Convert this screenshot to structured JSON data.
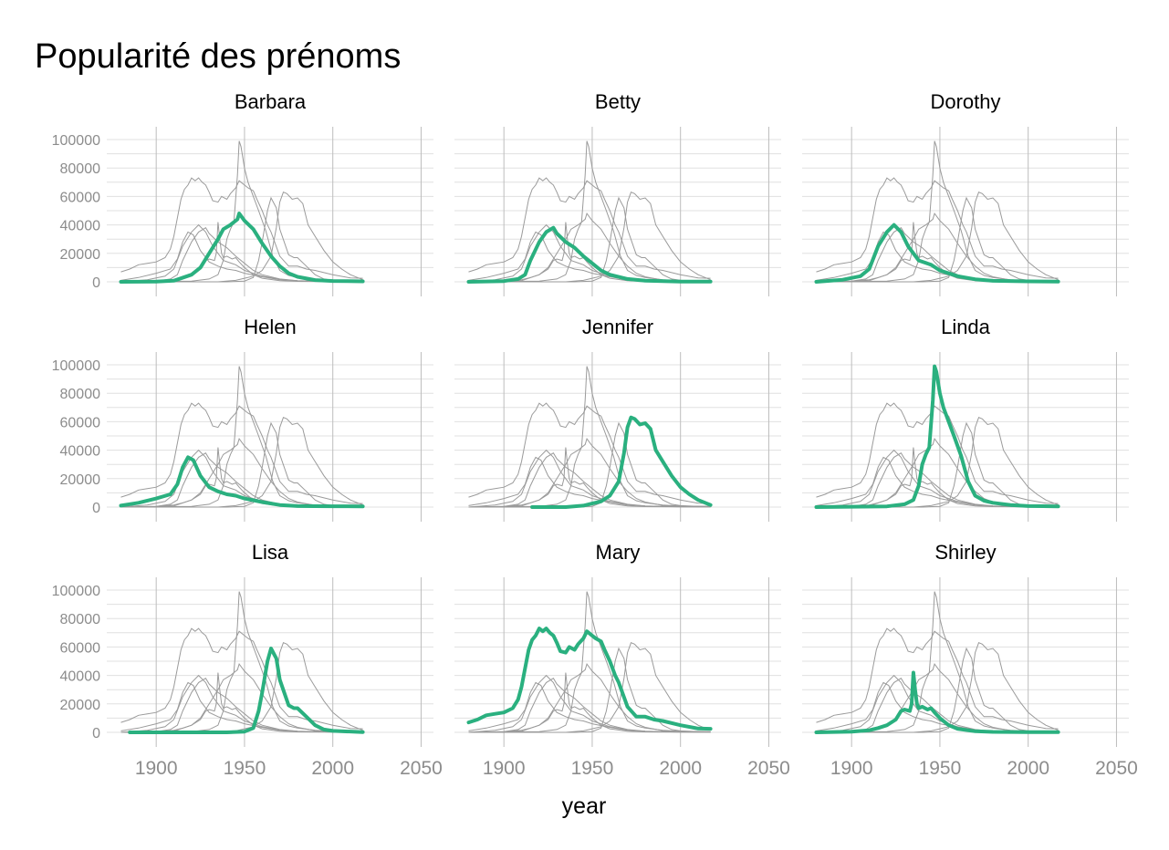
{
  "chart_data": {
    "type": "line",
    "title": "Popularité des prénoms",
    "xlabel": "year",
    "ylabel": "",
    "facet_by": "name",
    "xlim": [
      1880,
      2050
    ],
    "ylim": [
      0,
      100000
    ],
    "x_ticks": [
      1900,
      1950,
      2000,
      2050
    ],
    "y_ticks": [
      0,
      20000,
      40000,
      60000,
      80000,
      100000
    ],
    "grid": true,
    "legend": "none",
    "colors": {
      "highlight": "#2ab07f",
      "background_series": "#9a9a9a"
    },
    "panels": [
      "Barbara",
      "Betty",
      "Dorothy",
      "Helen",
      "Jennifer",
      "Linda",
      "Lisa",
      "Mary",
      "Shirley"
    ],
    "series": [
      {
        "name": "Barbara",
        "x": [
          1880,
          1900,
          1910,
          1920,
          1925,
          1930,
          1935,
          1938,
          1942,
          1946,
          1947,
          1950,
          1955,
          1960,
          1965,
          1970,
          1975,
          1980,
          1990,
          2000,
          2017
        ],
        "values": [
          0,
          200,
          800,
          5000,
          10000,
          20000,
          30000,
          37000,
          40000,
          44000,
          48000,
          43000,
          37000,
          27000,
          18000,
          11000,
          6000,
          3500,
          1200,
          600,
          300
        ]
      },
      {
        "name": "Betty",
        "x": [
          1880,
          1900,
          1908,
          1912,
          1915,
          1920,
          1924,
          1928,
          1930,
          1935,
          1940,
          1945,
          1950,
          1955,
          1960,
          1970,
          1980,
          2000,
          2017
        ],
        "values": [
          0,
          500,
          2000,
          5000,
          15000,
          28000,
          35000,
          38000,
          34000,
          28000,
          24000,
          18000,
          13000,
          8000,
          5000,
          2000,
          800,
          200,
          100
        ]
      },
      {
        "name": "Dorothy",
        "x": [
          1880,
          1895,
          1905,
          1910,
          1915,
          1920,
          1924,
          1928,
          1932,
          1938,
          1945,
          1950,
          1960,
          1970,
          1980,
          2000,
          2017
        ],
        "values": [
          0,
          1500,
          4000,
          9000,
          25000,
          35000,
          40000,
          35000,
          25000,
          15000,
          12000,
          8000,
          4000,
          1800,
          700,
          300,
          200
        ]
      },
      {
        "name": "Helen",
        "x": [
          1880,
          1890,
          1900,
          1908,
          1912,
          1915,
          1918,
          1921,
          1925,
          1930,
          1935,
          1940,
          1945,
          1950,
          1960,
          1970,
          1980,
          2000,
          2017
        ],
        "values": [
          1000,
          3000,
          6000,
          9000,
          16000,
          28000,
          35000,
          33000,
          22000,
          14000,
          11000,
          9000,
          8000,
          6000,
          3500,
          1500,
          700,
          600,
          500
        ]
      },
      {
        "name": "Jennifer",
        "x": [
          1916,
          1935,
          1945,
          1950,
          1955,
          1960,
          1965,
          1968,
          1970,
          1972,
          1974,
          1977,
          1980,
          1983,
          1986,
          1990,
          1995,
          2000,
          2005,
          2010,
          2017
        ],
        "values": [
          0,
          0,
          1000,
          2500,
          4000,
          8000,
          18000,
          38000,
          56000,
          63000,
          62000,
          58000,
          59000,
          55000,
          40000,
          32000,
          22000,
          14000,
          9000,
          5000,
          1500
        ]
      },
      {
        "name": "Linda",
        "x": [
          1880,
          1920,
          1930,
          1935,
          1938,
          1940,
          1942,
          1944,
          1946,
          1947,
          1948,
          1950,
          1952,
          1955,
          1958,
          1962,
          1966,
          1970,
          1975,
          1980,
          1990,
          2000,
          2017
        ],
        "values": [
          0,
          500,
          2000,
          5000,
          15000,
          30000,
          37000,
          42000,
          75000,
          99000,
          95000,
          80000,
          70000,
          60000,
          50000,
          36000,
          18000,
          8000,
          4500,
          3000,
          1500,
          700,
          500
        ]
      },
      {
        "name": "Lisa",
        "x": [
          1885,
          1940,
          1950,
          1955,
          1958,
          1960,
          1963,
          1965,
          1968,
          1970,
          1975,
          1978,
          1980,
          1985,
          1990,
          1995,
          2000,
          2017
        ],
        "values": [
          0,
          0,
          500,
          3000,
          15000,
          28000,
          50000,
          59000,
          52000,
          37000,
          19000,
          17000,
          17000,
          11000,
          5000,
          2000,
          1000,
          200
        ]
      },
      {
        "name": "Mary",
        "x": [
          1880,
          1885,
          1890,
          1895,
          1900,
          1905,
          1908,
          1910,
          1912,
          1914,
          1916,
          1918,
          1920,
          1922,
          1924,
          1926,
          1928,
          1930,
          1932,
          1935,
          1937,
          1940,
          1942,
          1945,
          1947,
          1950,
          1952,
          1955,
          1957,
          1960,
          1963,
          1965,
          1970,
          1975,
          1980,
          1985,
          1990,
          2000,
          2010,
          2017
        ],
        "values": [
          7000,
          9000,
          12000,
          13000,
          14000,
          17000,
          23000,
          32000,
          45000,
          58000,
          65000,
          68000,
          73000,
          71000,
          73000,
          70000,
          68000,
          63000,
          57000,
          56000,
          60000,
          58000,
          62000,
          66000,
          71000,
          68000,
          66000,
          64000,
          58000,
          50000,
          40000,
          35000,
          18000,
          11000,
          11000,
          9000,
          8000,
          5000,
          2700,
          2500
        ]
      },
      {
        "name": "Shirley",
        "x": [
          1880,
          1900,
          1910,
          1915,
          1920,
          1925,
          1928,
          1930,
          1933,
          1934,
          1935,
          1936,
          1937,
          1938,
          1940,
          1943,
          1945,
          1947,
          1950,
          1955,
          1960,
          1970,
          1980,
          2000,
          2017
        ],
        "values": [
          0,
          500,
          1500,
          3000,
          5000,
          9000,
          15000,
          16000,
          15000,
          20000,
          42000,
          30000,
          20000,
          17000,
          18000,
          16000,
          17000,
          14000,
          10000,
          5000,
          2500,
          800,
          300,
          150,
          100
        ]
      }
    ]
  }
}
